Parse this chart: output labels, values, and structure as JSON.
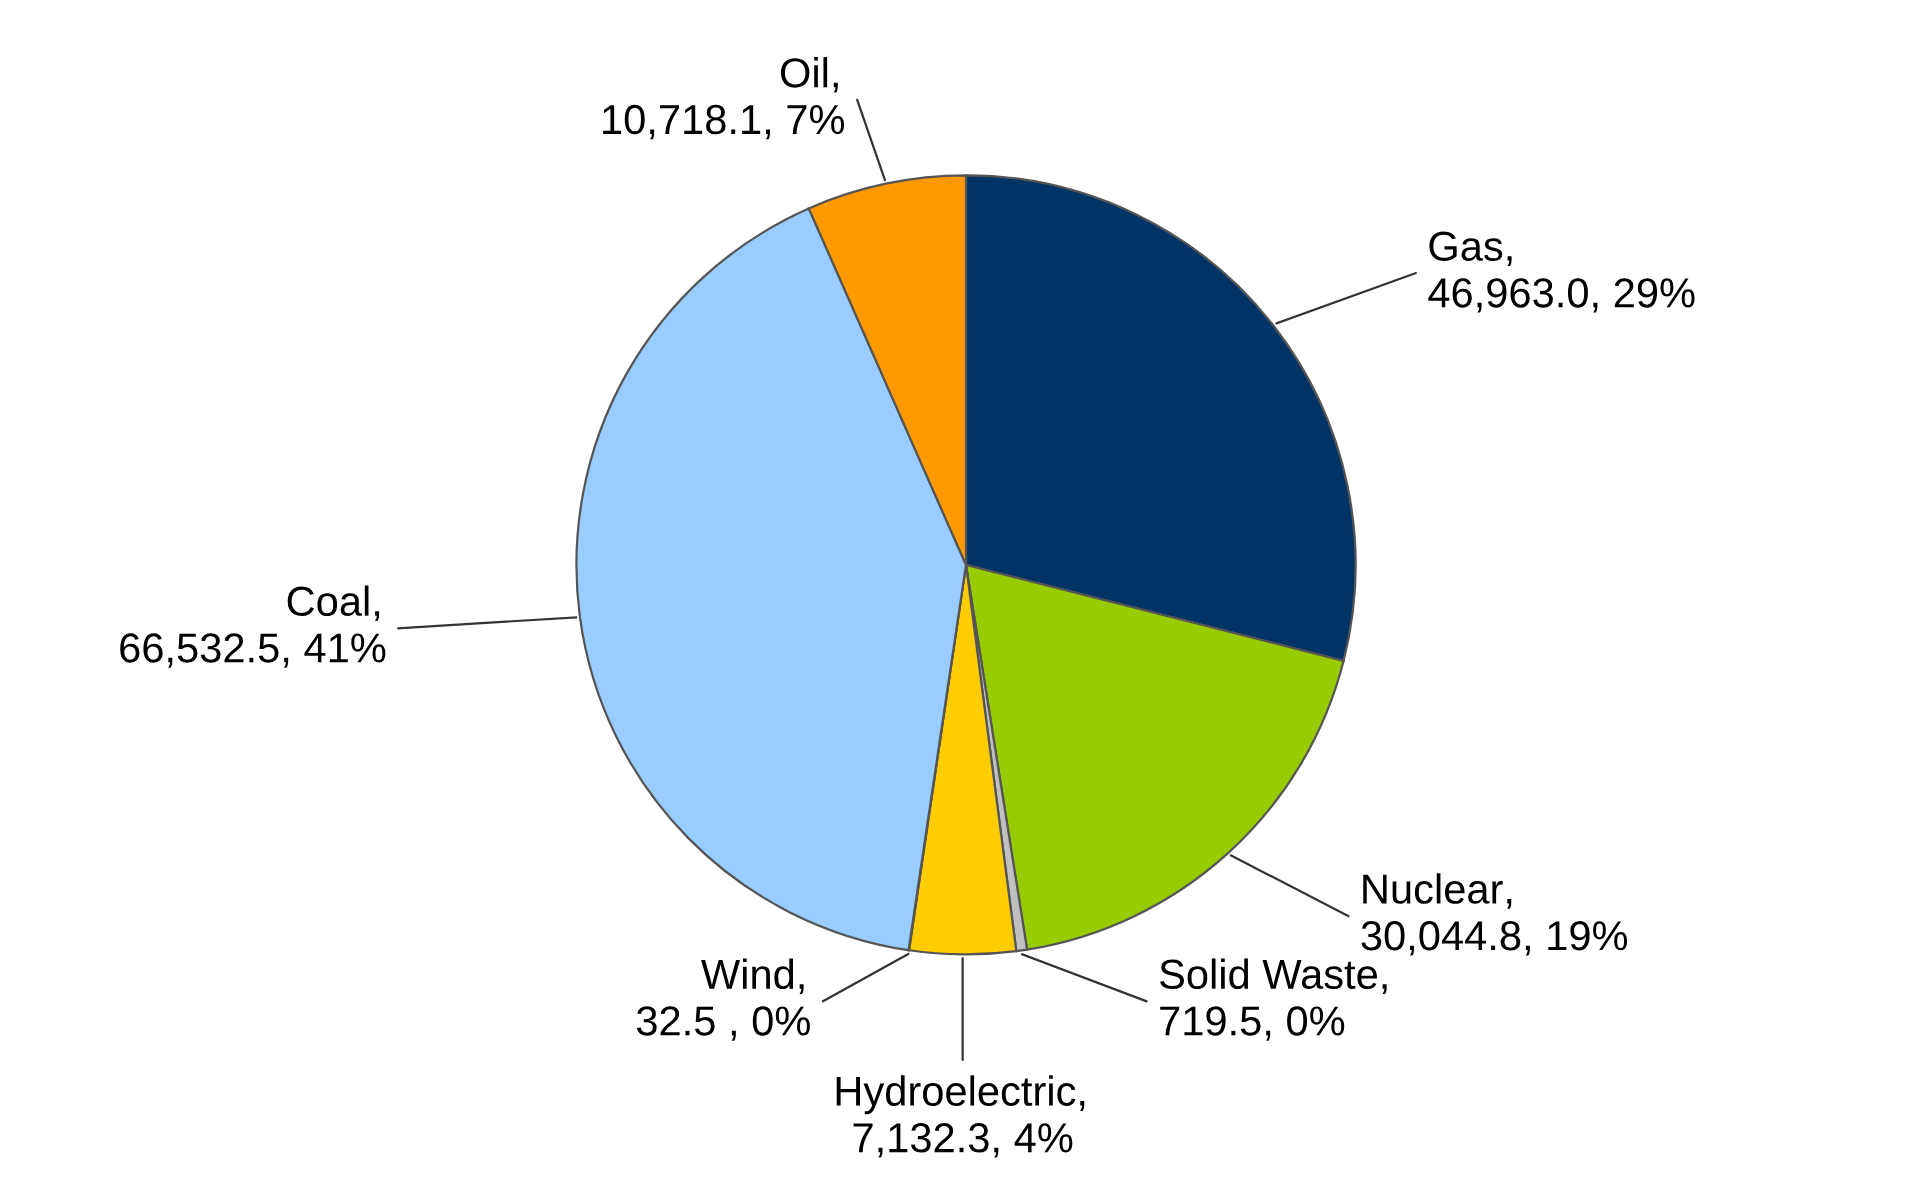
{
  "chart_data": {
    "type": "pie",
    "categories": [
      "Gas",
      "Nuclear",
      "Solid Waste",
      "Hydroelectric",
      "Wind",
      "Coal",
      "Oil"
    ],
    "values": [
      46963.0,
      30044.8,
      719.5,
      7132.3,
      32.5,
      66532.5,
      10718.1
    ],
    "value_labels": [
      "46,963.0, 29%",
      "30,044.8, 19%",
      "719.5, 0%",
      "7,132.3, 4%",
      "32.5 , 0%",
      "66,532.5, 41%",
      "10,718.1, 7%"
    ],
    "colors": [
      "#003366",
      "#99cc00",
      "#c0c0c0",
      "#ffcc00",
      "#ffffff",
      "#99ccff",
      "#ff9900"
    ],
    "annotations": [
      ","
    ],
    "legend": false
  }
}
